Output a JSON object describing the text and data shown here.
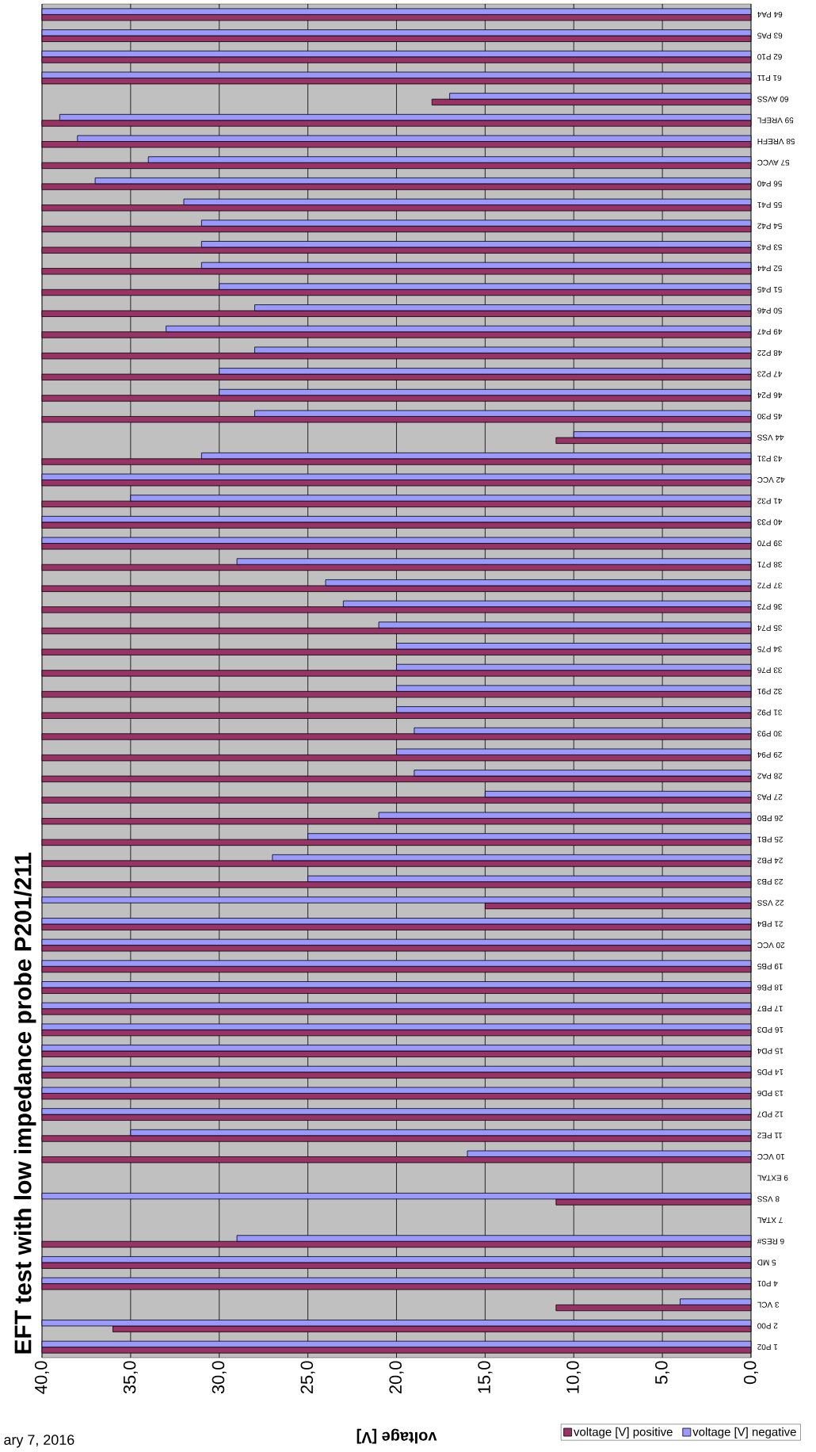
{
  "chart_data": {
    "type": "bar",
    "orientation": "horizontal",
    "title": "EFT test with low impedance probe P201/211",
    "xlabel": "voltage [V]",
    "categories": [
      "64 PA4",
      "63 PA5",
      "62 P10",
      "61 P11",
      "60 AVSS",
      "59 VREFL",
      "58 VREFH",
      "57 AVCC",
      "56 P40",
      "55 P41",
      "54 P42",
      "53 P43",
      "52 P44",
      "51 P45",
      "50 P46",
      "49 P47",
      "48 P22",
      "47 P23",
      "46 P24",
      "45 P30",
      "44 VSS",
      "43 P31",
      "42 VCC",
      "41 P32",
      "40 P33",
      "39 P70",
      "38 P71",
      "37 P72",
      "36 P73",
      "35 P74",
      "34 P75",
      "33 P76",
      "32 P91",
      "31 P92",
      "30 P93",
      "29 P94",
      "28 PA2",
      "27 PA3",
      "26 PB0",
      "25 PB1",
      "24 PB2",
      "23 PB3",
      "22 VSS",
      "21 PB4",
      "20 VCC",
      "19 PB5",
      "18 PB6",
      "17 PB7",
      "16 PD3",
      "15 PD4",
      "14 PD5",
      "13 PD6",
      "12 PD7",
      "11 PE2",
      "10 VCC",
      "9 EXTAL",
      "8 VSS",
      "7 XTAL",
      "6 RES#",
      "5 MD",
      "4 P01",
      "3 VCL",
      "2 P00",
      "1 P02"
    ],
    "series": [
      {
        "name": "voltage [V] positive",
        "color": "#993366",
        "values": [
          40,
          40,
          40,
          40,
          18,
          40,
          40,
          40,
          40,
          40,
          40,
          40,
          40,
          40,
          40,
          40,
          40,
          40,
          40,
          40,
          11,
          40,
          40,
          40,
          40,
          40,
          40,
          40,
          40,
          40,
          40,
          40,
          40,
          40,
          40,
          40,
          40,
          40,
          40,
          40,
          40,
          40,
          15,
          40,
          40,
          40,
          40,
          40,
          40,
          40,
          40,
          40,
          40,
          40,
          40,
          null,
          11,
          null,
          40,
          40,
          40,
          11,
          36,
          40
        ]
      },
      {
        "name": "voltage [V] negative",
        "color": "#9999ff",
        "values": [
          40,
          40,
          40,
          40,
          17,
          39,
          38,
          34,
          37,
          32,
          31,
          31,
          31,
          30,
          28,
          33,
          28,
          30,
          30,
          28,
          10,
          31,
          40,
          35,
          40,
          40,
          29,
          24,
          23,
          21,
          20,
          20,
          20,
          20,
          19,
          20,
          19,
          15,
          21,
          25,
          27,
          25,
          40,
          40,
          40,
          40,
          40,
          40,
          40,
          40,
          40,
          40,
          40,
          35,
          16,
          null,
          40,
          null,
          29,
          40,
          40,
          4,
          40,
          40
        ]
      }
    ],
    "xlim": [
      40,
      0
    ],
    "xticks": [
      {
        "value": 40,
        "label": "40,0"
      },
      {
        "value": 35,
        "label": "35,0"
      },
      {
        "value": 30,
        "label": "30,0"
      },
      {
        "value": 25,
        "label": "25,0"
      },
      {
        "value": 20,
        "label": "20,0"
      },
      {
        "value": 15,
        "label": "15,0"
      },
      {
        "value": 10,
        "label": "10,0"
      },
      {
        "value": 5,
        "label": "5,0"
      },
      {
        "value": 0,
        "label": "0,0"
      }
    ],
    "grid": "x",
    "legend": "bottom right",
    "annotations": [
      "ary 7, 2016"
    ]
  }
}
